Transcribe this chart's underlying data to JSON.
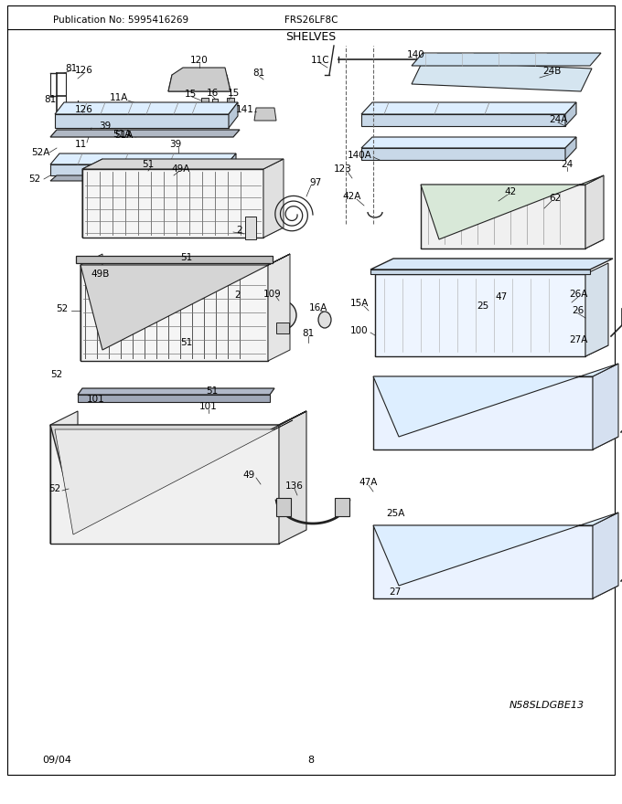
{
  "title": "SHELVES",
  "model": "FRS26LF8C",
  "publication": "Publication No: 5995416269",
  "date": "09/04",
  "page": "8",
  "watermark": "N58SLDGBE13",
  "fig_width": 6.8,
  "fig_height": 8.8,
  "bg_color": "#ffffff",
  "text_color": "#000000",
  "line_color": "#222222",
  "lfs": 7.5,
  "labels": [
    [
      "81",
      75,
      790
    ],
    [
      "81",
      75,
      770
    ],
    [
      "126",
      90,
      758
    ],
    [
      "126",
      90,
      780
    ],
    [
      "120",
      210,
      808
    ],
    [
      "11C",
      355,
      810
    ],
    [
      "140",
      455,
      808
    ],
    [
      "24B",
      600,
      795
    ],
    [
      "81",
      285,
      795
    ],
    [
      "15",
      208,
      775
    ],
    [
      "16",
      228,
      775
    ],
    [
      "15",
      252,
      775
    ],
    [
      "11A",
      130,
      770
    ],
    [
      "141",
      268,
      757
    ],
    [
      "51A",
      135,
      730
    ],
    [
      "39",
      118,
      740
    ],
    [
      "39",
      195,
      722
    ],
    [
      "11",
      90,
      718
    ],
    [
      "52A",
      46,
      710
    ],
    [
      "52",
      40,
      682
    ],
    [
      "24A",
      608,
      745
    ],
    [
      "24",
      618,
      710
    ],
    [
      "140A",
      395,
      707
    ],
    [
      "123",
      378,
      692
    ],
    [
      "42A",
      388,
      665
    ],
    [
      "51",
      165,
      695
    ],
    [
      "49A",
      198,
      688
    ],
    [
      "97",
      345,
      680
    ],
    [
      "42",
      558,
      668
    ],
    [
      "62",
      605,
      662
    ],
    [
      "2",
      262,
      625
    ],
    [
      "49B",
      112,
      577
    ],
    [
      "52",
      70,
      540
    ],
    [
      "51",
      205,
      600
    ],
    [
      "51",
      205,
      505
    ],
    [
      "51",
      232,
      450
    ],
    [
      "52",
      65,
      468
    ],
    [
      "109",
      302,
      558
    ],
    [
      "16A",
      350,
      540
    ],
    [
      "15A",
      392,
      545
    ],
    [
      "81",
      337,
      513
    ],
    [
      "2",
      262,
      552
    ],
    [
      "100",
      392,
      515
    ],
    [
      "47",
      548,
      555
    ],
    [
      "25",
      530,
      545
    ],
    [
      "26A",
      628,
      557
    ],
    [
      "26",
      628,
      538
    ],
    [
      "27A",
      628,
      505
    ],
    [
      "101",
      108,
      450
    ],
    [
      "101",
      228,
      435
    ],
    [
      "52",
      62,
      348
    ],
    [
      "49",
      272,
      358
    ],
    [
      "136",
      323,
      343
    ],
    [
      "47A",
      402,
      350
    ],
    [
      "25A",
      432,
      315
    ],
    [
      "27",
      432,
      228
    ]
  ]
}
